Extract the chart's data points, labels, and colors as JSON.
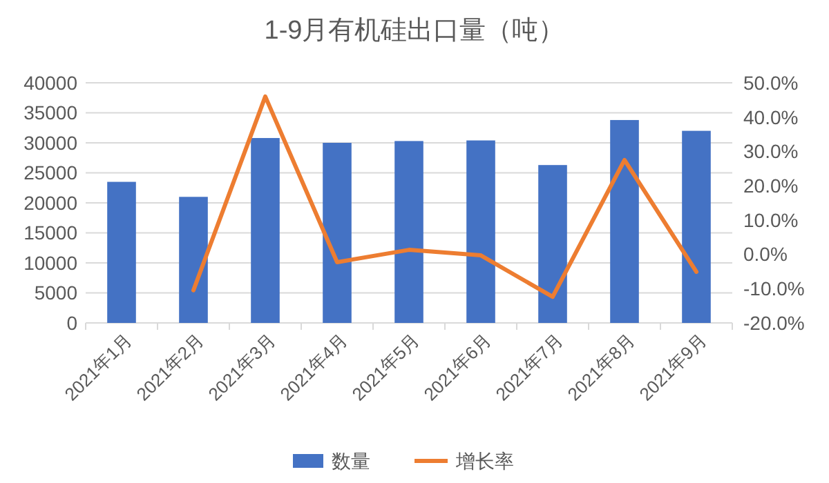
{
  "chart_data": {
    "type": "bar",
    "title": "1-9月有机硅出口量（吨）",
    "categories": [
      "2021年1月",
      "2021年2月",
      "2021年3月",
      "2021年4月",
      "2021年5月",
      "2021年6月",
      "2021年7月",
      "2021年8月",
      "2021年9月"
    ],
    "series": [
      {
        "name": "数量",
        "color": "#4472c4",
        "values": [
          23500,
          21000,
          30800,
          30000,
          30300,
          30400,
          26300,
          33800,
          32000
        ]
      },
      {
        "name": "增长率",
        "type": "line",
        "axis": "y2",
        "color": "#ed7d31",
        "values": [
          null,
          -10.5,
          46,
          -2.3,
          1.3,
          -0.3,
          -12.4,
          27.5,
          -5.1
        ]
      }
    ],
    "ylim": [
      0,
      40000
    ],
    "yticks": [
      0,
      5000,
      10000,
      15000,
      20000,
      25000,
      30000,
      35000,
      40000
    ],
    "y2lim": [
      -20,
      50
    ],
    "y2ticks": [
      {
        "value": -20,
        "label": "-20.0%"
      },
      {
        "value": -10,
        "label": "-10.0%"
      },
      {
        "value": 0,
        "label": "0.0%"
      },
      {
        "value": 10,
        "label": "10.0%"
      },
      {
        "value": 20,
        "label": "20.0%"
      },
      {
        "value": 30,
        "label": "30.0%"
      },
      {
        "value": 40,
        "label": "40.0%"
      },
      {
        "value": 50,
        "label": "50.0%"
      }
    ],
    "grid": "y",
    "legend": "bottom",
    "marker": "none",
    "line_style": "solid"
  }
}
